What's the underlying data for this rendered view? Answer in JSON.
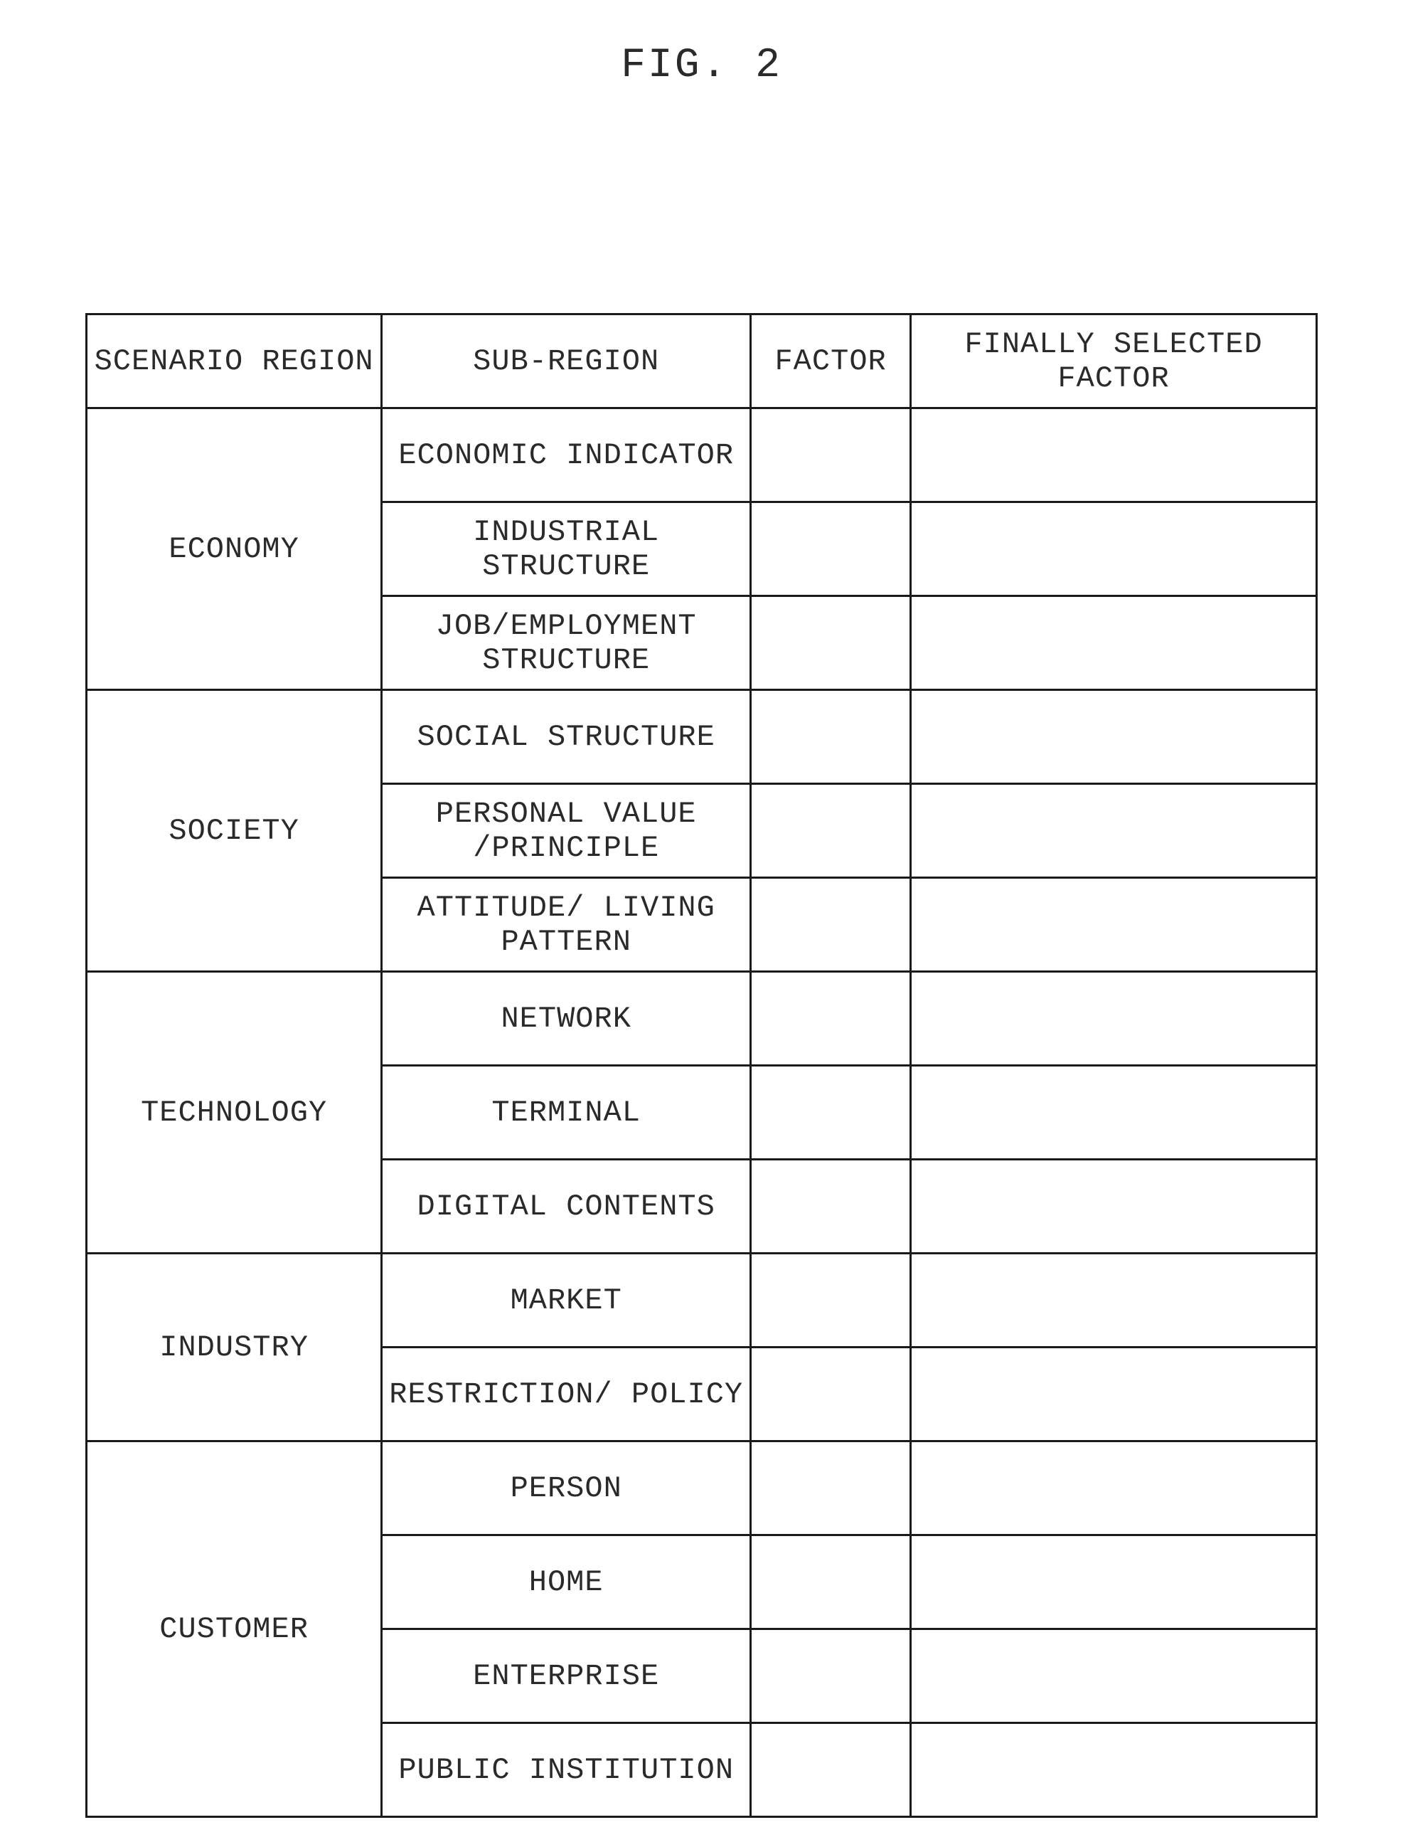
{
  "figure_title": "FIG. 2",
  "headers": {
    "scenario_region": "SCENARIO REGION",
    "sub_region": "SUB-REGION",
    "factor": "FACTOR",
    "finally_selected_factor": "FINALLY SELECTED FACTOR"
  },
  "groups": [
    {
      "region": "ECONOMY",
      "subs": [
        {
          "label": "ECONOMIC INDICATOR",
          "factor": "",
          "final": ""
        },
        {
          "label": "INDUSTRIAL STRUCTURE",
          "factor": "",
          "final": ""
        },
        {
          "label": "JOB/EMPLOYMENT STRUCTURE",
          "factor": "",
          "final": ""
        }
      ]
    },
    {
      "region": "SOCIETY",
      "subs": [
        {
          "label": "SOCIAL STRUCTURE",
          "factor": "",
          "final": ""
        },
        {
          "label": "PERSONAL VALUE /PRINCIPLE",
          "factor": "",
          "final": ""
        },
        {
          "label": "ATTITUDE/ LIVING PATTERN",
          "factor": "",
          "final": ""
        }
      ]
    },
    {
      "region": "TECHNOLOGY",
      "subs": [
        {
          "label": "NETWORK",
          "factor": "",
          "final": ""
        },
        {
          "label": "TERMINAL",
          "factor": "",
          "final": ""
        },
        {
          "label": "DIGITAL CONTENTS",
          "factor": "",
          "final": ""
        }
      ]
    },
    {
      "region": "INDUSTRY",
      "subs": [
        {
          "label": "MARKET",
          "factor": "",
          "final": ""
        },
        {
          "label": "RESTRICTION/ POLICY",
          "factor": "",
          "final": ""
        }
      ]
    },
    {
      "region": "CUSTOMER",
      "subs": [
        {
          "label": "PERSON",
          "factor": "",
          "final": ""
        },
        {
          "label": "HOME",
          "factor": "",
          "final": ""
        },
        {
          "label": "ENTERPRISE",
          "factor": "",
          "final": ""
        },
        {
          "label": "PUBLIC INSTITUTION",
          "factor": "",
          "final": ""
        }
      ]
    }
  ]
}
